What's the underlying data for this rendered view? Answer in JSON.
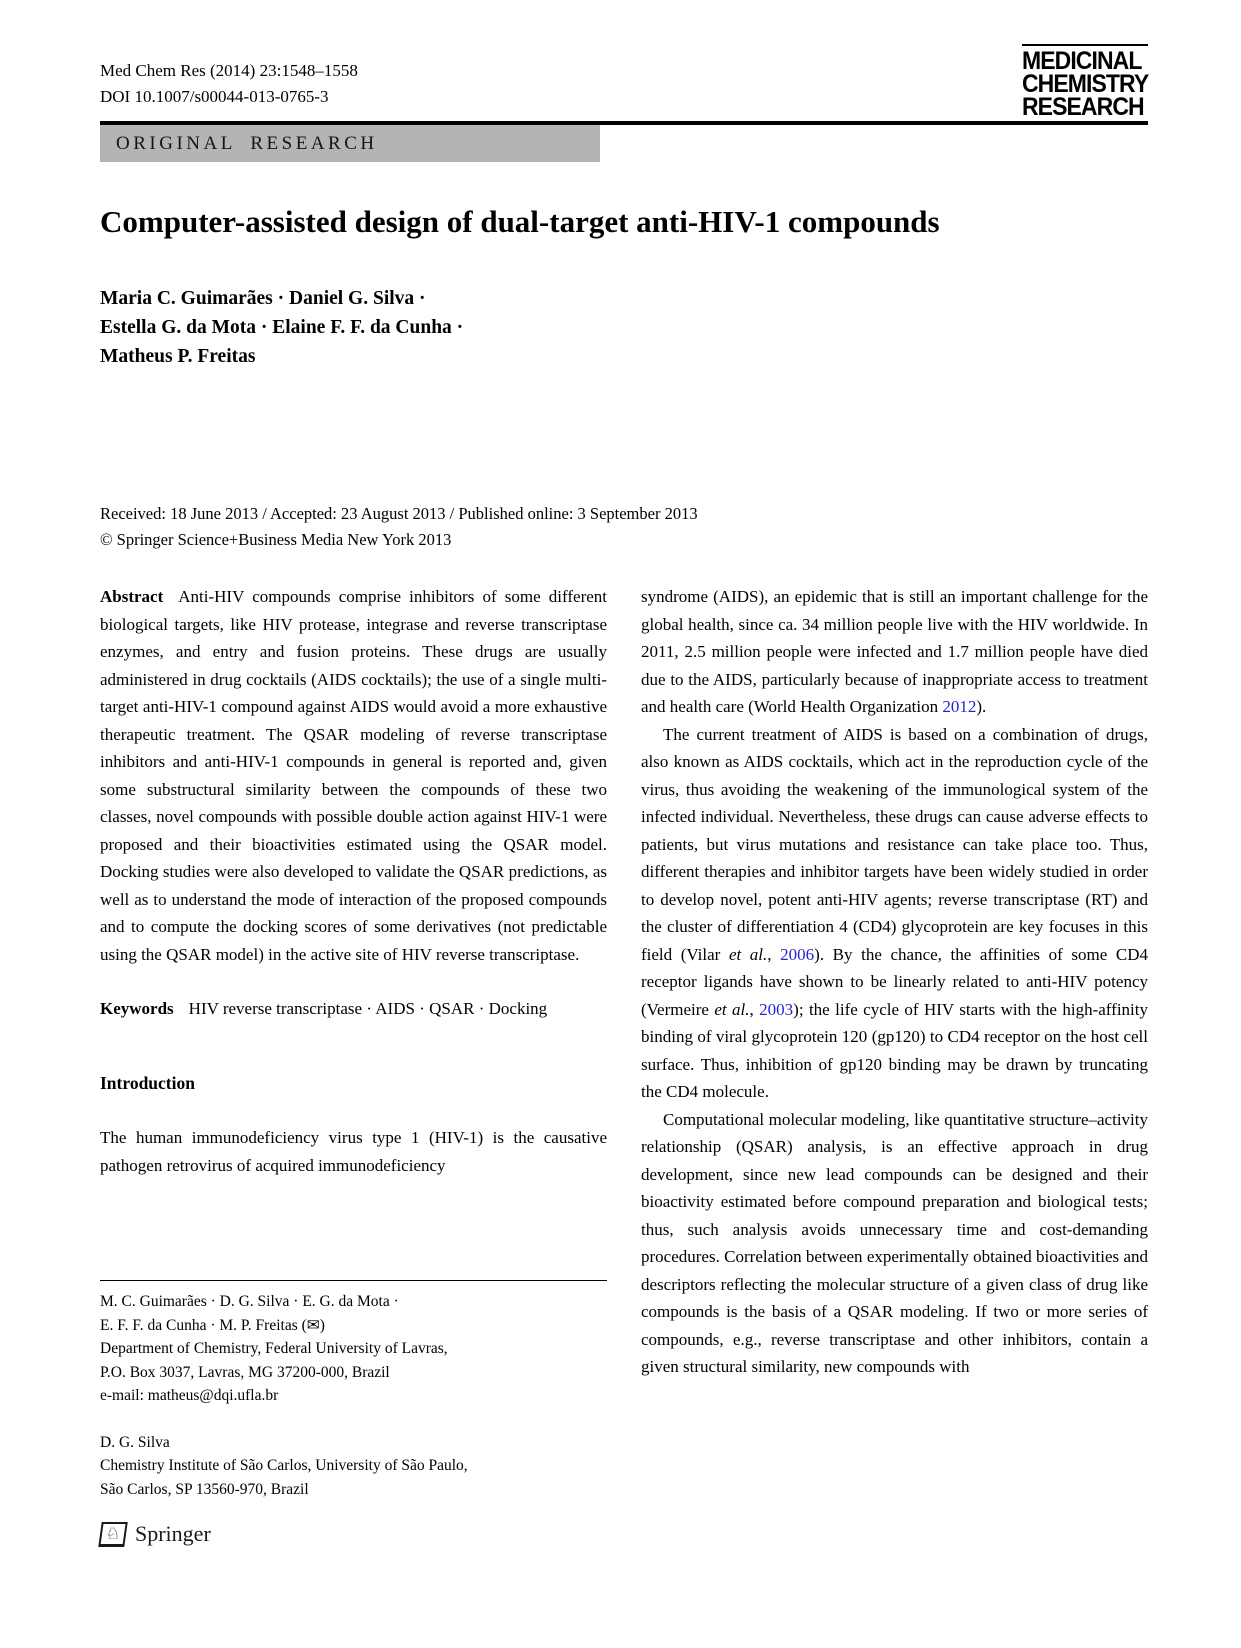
{
  "header": {
    "journal_line": "Med Chem Res (2014) 23:1548–1558",
    "doi_line": "DOI 10.1007/s00044-013-0765-3",
    "logo_lines": [
      "MEDICINAL",
      "CHEMISTRY",
      "RESEARCH"
    ],
    "banner_label": "ORIGINAL RESEARCH"
  },
  "article": {
    "title": "Computer-assisted design of dual-target anti-HIV-1 compounds",
    "author_lines": [
      "Maria C. Guimarães · Daniel G. Silva ·",
      "Estella G. da Mota · Elaine F. F. da Cunha ·",
      "Matheus P. Freitas"
    ],
    "received_line": "Received: 18 June 2013 / Accepted: 23 August 2013 / Published online: 3 September 2013",
    "copyright_line": "© Springer Science+Business Media New York 2013"
  },
  "abstract": {
    "label": "Abstract",
    "text": "Anti-HIV compounds comprise inhibitors of some different biological targets, like HIV protease, integrase and reverse transcriptase enzymes, and entry and fusion proteins. These drugs are usually administered in drug cocktails (AIDS cocktails); the use of a single multi-target anti-HIV-1 compound against AIDS would avoid a more exhaustive therapeutic treatment. The QSAR modeling of reverse transcriptase inhibitors and anti-HIV-1 compounds in general is reported and, given some substructural similarity between the compounds of these two classes, novel compounds with possible double action against HIV-1 were proposed and their bioactivities estimated using the QSAR model. Docking studies were also developed to validate the QSAR predictions, as well as to understand the mode of interaction of the proposed compounds and to compute the docking scores of some derivatives (not predictable using the QSAR model) in the active site of HIV reverse transcriptase."
  },
  "keywords": {
    "label": "Keywords",
    "text": "HIV reverse transcriptase · AIDS · QSAR · Docking"
  },
  "introduction": {
    "heading": "Introduction",
    "para1": "The human immunodeficiency virus type 1 (HIV-1) is the causative pathogen retrovirus of acquired immunodeficiency"
  },
  "right_column": {
    "para1_segments": [
      {
        "t": "syndrome (AIDS), an epidemic that is still an important challenge for the global health, since ca. 34 million people live with the HIV worldwide. In 2011, 2.5 million people were infected and 1.7 million people have died due to the AIDS, particularly because of inappropriate access to treatment and health care (World Health Organization "
      },
      {
        "t": "2012",
        "s": "link"
      },
      {
        "t": ")."
      }
    ],
    "para2_segments": [
      {
        "t": "The current treatment of AIDS is based on a combination of drugs, also known as AIDS cocktails, which act in the reproduction cycle of the virus, thus avoiding the weakening of the immunological system of the infected individual. Nevertheless, these drugs can cause adverse effects to patients, but virus mutations and resistance can take place too. Thus, different therapies and inhibitor targets have been widely studied in order to develop novel, potent anti-HIV agents; reverse transcriptase (RT) and the cluster of differentiation 4 (CD4) glycoprotein are key focuses in this field (Vilar "
      },
      {
        "t": "et al.",
        "s": "i"
      },
      {
        "t": ", "
      },
      {
        "t": "2006",
        "s": "link"
      },
      {
        "t": "). By the chance, the affinities of some CD4 receptor ligands have shown to be linearly related to anti-HIV potency (Vermeire "
      },
      {
        "t": "et al.",
        "s": "i"
      },
      {
        "t": ", "
      },
      {
        "t": "2003",
        "s": "link"
      },
      {
        "t": "); the life cycle of HIV starts with the high-affinity binding of viral glycoprotein 120 (gp120) to CD4 receptor on the host cell surface. Thus, inhibition of gp120 binding may be drawn by truncating the CD4 molecule."
      }
    ],
    "para3": "Computational molecular modeling, like quantitative structure–activity relationship (QSAR) analysis, is an effective approach in drug development, since new lead compounds can be designed and their bioactivity estimated before compound preparation and biological tests; thus, such analysis avoids unnecessary time and cost-demanding procedures. Correlation between experimentally obtained bioactivities and descriptors reflecting the molecular structure of a given class of drug like compounds is the basis of a QSAR modeling. If two or more series of compounds, e.g., reverse transcriptase and other inhibitors, contain a given structural similarity, new compounds with"
  },
  "footnote": {
    "group1_lines": [
      "M. C. Guimarães · D. G. Silva · E. G. da Mota ·",
      "E. F. F. da Cunha · M. P. Freitas (✉)",
      "Department of Chemistry, Federal University of Lavras,",
      "P.O. Box 3037, Lavras, MG 37200-000, Brazil",
      "e-mail: matheus@dqi.ufla.br"
    ],
    "group2_lines": [
      "D. G. Silva",
      "Chemistry Institute of São Carlos, University of São Paulo,",
      "São Carlos, SP 13560-970, Brazil"
    ]
  },
  "footer": {
    "publisher_label": "Springer",
    "knight_glyph": "♘"
  },
  "colors": {
    "link_blue": "#2323d2",
    "banner_gray": "#b4b4b4"
  }
}
